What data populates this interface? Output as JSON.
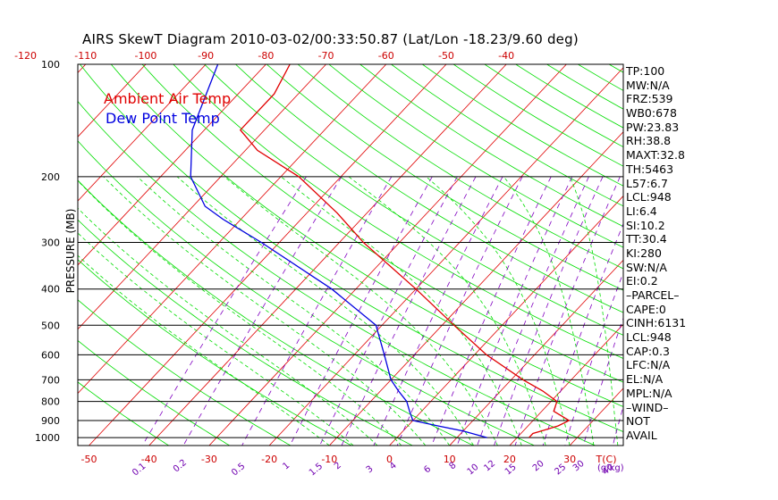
{
  "chart_data": {
    "type": "skewt",
    "title": "AIRS SkewT Diagram 2010-03-02/00:33:50.87 (Lat/Lon -18.23/9.60 deg)",
    "ylabel": "PRESSURE (MB)",
    "xlabel": "T(C)",
    "mixing_ratio_unit": "(g/kg)",
    "pressure_ticks": [
      100,
      200,
      300,
      400,
      500,
      600,
      700,
      800,
      900,
      1000
    ],
    "top_temp_ticks": [
      -120,
      -110,
      -100,
      -90,
      -80,
      -70,
      -60,
      -50,
      -40
    ],
    "bottom_temp_ticks": [
      -50,
      -40,
      -30,
      -20,
      -10,
      0,
      10,
      20,
      30
    ],
    "mixing_ratio_ticks": [
      "0.1",
      "0.2",
      "0.5",
      "1",
      "1.5",
      "2",
      "3",
      "4",
      "6",
      "8",
      "10",
      "12",
      "15",
      "20",
      "25",
      "30",
      "40"
    ],
    "legend": [
      "Ambient Air Temp",
      "Dew Point Temp"
    ],
    "colors": {
      "temp": "#e00000",
      "dewpoint": "#0000e0",
      "isotherm": "#e00000",
      "dry_adiabat": "#00dd00",
      "moist_adiabat": "#00dd00",
      "mixing_ratio": "#8000c0",
      "isobar": "#000000"
    },
    "series": [
      {
        "name": "Ambient Air Temp",
        "points": [
          [
            1000,
            22
          ],
          [
            975,
            22
          ],
          [
            960,
            23
          ],
          [
            930,
            25
          ],
          [
            900,
            26
          ],
          [
            850,
            22
          ],
          [
            800,
            21
          ],
          [
            750,
            17
          ],
          [
            700,
            12
          ],
          [
            600,
            2
          ],
          [
            500,
            -8
          ],
          [
            400,
            -20
          ],
          [
            300,
            -36
          ],
          [
            250,
            -45
          ],
          [
            200,
            -57
          ],
          [
            170,
            -68
          ],
          [
            150,
            -74
          ],
          [
            120,
            -74
          ],
          [
            100,
            -76
          ]
        ]
      },
      {
        "name": "Dew Point Temp",
        "points": [
          [
            1000,
            15
          ],
          [
            960,
            10
          ],
          [
            930,
            5
          ],
          [
            900,
            0
          ],
          [
            850,
            -2
          ],
          [
            800,
            -4
          ],
          [
            750,
            -7
          ],
          [
            700,
            -10
          ],
          [
            600,
            -15
          ],
          [
            500,
            -21
          ],
          [
            400,
            -34
          ],
          [
            300,
            -53
          ],
          [
            260,
            -63
          ],
          [
            240,
            -68
          ],
          [
            200,
            -75
          ],
          [
            150,
            -82
          ],
          [
            100,
            -88
          ]
        ]
      }
    ]
  },
  "stats": [
    "TP:100",
    "MW:N/A",
    "FRZ:539",
    "WB0:678",
    "PW:23.83",
    "RH:38.8",
    "MAXT:32.8",
    "TH:5463",
    "L57:6.7",
    "LCL:948",
    "LI:6.4",
    "SI:10.2",
    "TT:30.4",
    "KI:280",
    "SW:N/A",
    "EI:0.2",
    "–PARCEL–",
    "CAPE:0",
    "CINH:6131",
    "LCL:948",
    "CAP:0.3",
    "LFC:N/A",
    "EL:N/A",
    "MPL:N/A",
    "–WIND–",
    " NOT",
    " AVAIL"
  ]
}
